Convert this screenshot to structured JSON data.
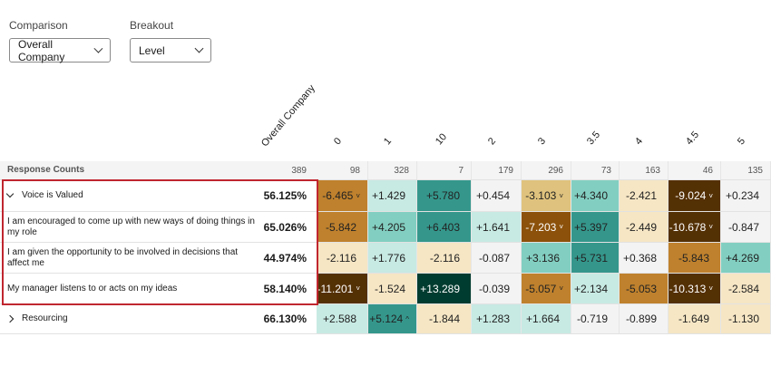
{
  "controls": {
    "comparison_label": "Comparison",
    "comparison_value": "Overall Company",
    "breakout_label": "Breakout",
    "breakout_value": "Level"
  },
  "columns": [
    "Overall Company",
    "0",
    "1",
    "10",
    "2",
    "3",
    "3.5",
    "4",
    "4.5",
    "5"
  ],
  "response_counts": {
    "label": "Response Counts",
    "overall": "389",
    "values": [
      "98",
      "328",
      "7",
      "179",
      "296",
      "73",
      "163",
      "46",
      "135"
    ]
  },
  "colors": {
    "n": "#f3f3f3",
    "lt": "#c7eae3",
    "mt": "#82cfc1",
    "t": "#35978c",
    "dt": "#003c30",
    "ltan": "#f6e6c4",
    "tan": "#dfc27d",
    "c": "#bf812d",
    "b": "#8c510a",
    "db": "#543005",
    "highlight": "#c0262f"
  },
  "rows": [
    {
      "label": "Voice is Valued",
      "overall": "56.125%",
      "group": "expanded",
      "cells": [
        [
          "-6.465",
          "c",
          "down"
        ],
        [
          "+1.429",
          "lt"
        ],
        [
          "+5.780",
          "t"
        ],
        [
          "+0.454",
          "n"
        ],
        [
          "-3.103",
          "tan",
          "down"
        ],
        [
          "+4.340",
          "mt"
        ],
        [
          "-2.421",
          "ltan"
        ],
        [
          "-9.024",
          "db",
          "down"
        ],
        [
          "+0.234",
          "n"
        ]
      ]
    },
    {
      "label": "I am encouraged to come up with new ways of doing things in my role",
      "overall": "65.026%",
      "cells": [
        [
          "-5.842",
          "c"
        ],
        [
          "+4.205",
          "mt"
        ],
        [
          "+6.403",
          "t"
        ],
        [
          "+1.641",
          "lt"
        ],
        [
          "-7.203",
          "b",
          "down"
        ],
        [
          "+5.397",
          "t"
        ],
        [
          "-2.449",
          "ltan"
        ],
        [
          "-10.678",
          "db",
          "down"
        ],
        [
          "-0.847",
          "n"
        ]
      ]
    },
    {
      "label": "I am given the opportunity to be involved in decisions that affect me",
      "overall": "44.974%",
      "cells": [
        [
          "-2.116",
          "ltan"
        ],
        [
          "+1.776",
          "lt"
        ],
        [
          "-2.116",
          "ltan"
        ],
        [
          "-0.087",
          "n"
        ],
        [
          "+3.136",
          "mt"
        ],
        [
          "+5.731",
          "t"
        ],
        [
          "+0.368",
          "n"
        ],
        [
          "-5.843",
          "c"
        ],
        [
          "+4.269",
          "mt"
        ]
      ]
    },
    {
      "label": "My manager listens to or acts on my ideas",
      "overall": "58.140%",
      "cells": [
        [
          "-11.201",
          "db",
          "down"
        ],
        [
          "-1.524",
          "ltan"
        ],
        [
          "+13.289",
          "dt"
        ],
        [
          "-0.039",
          "n"
        ],
        [
          "-5.057",
          "c",
          "down"
        ],
        [
          "+2.134",
          "lt"
        ],
        [
          "-5.053",
          "c"
        ],
        [
          "-10.313",
          "db",
          "down"
        ],
        [
          "-2.584",
          "ltan"
        ]
      ]
    },
    {
      "label": "Resourcing",
      "overall": "66.130%",
      "group": "collapsed",
      "cells": [
        [
          "+2.588",
          "lt"
        ],
        [
          "+5.124",
          "t",
          "up"
        ],
        [
          "-1.844",
          "ltan"
        ],
        [
          "+1.283",
          "lt"
        ],
        [
          "+1.664",
          "lt"
        ],
        [
          "-0.719",
          "n"
        ],
        [
          "-0.899",
          "n"
        ],
        [
          "-1.649",
          "ltan"
        ],
        [
          "-1.130",
          "ltan"
        ]
      ]
    }
  ]
}
